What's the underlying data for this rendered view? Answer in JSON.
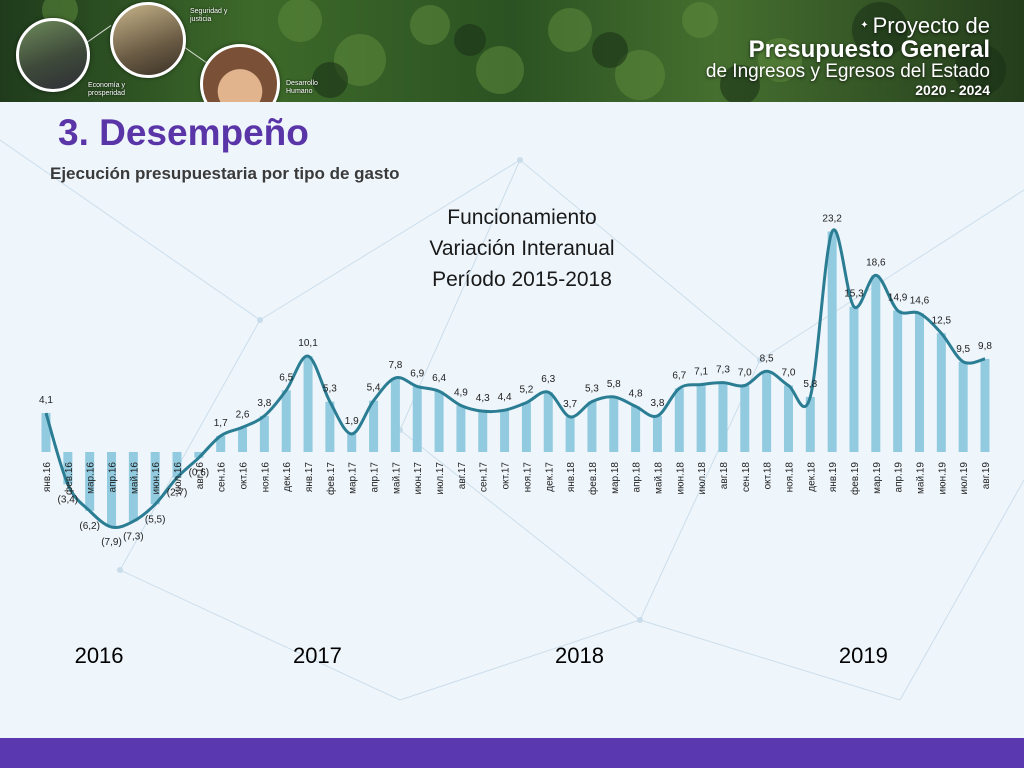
{
  "header": {
    "project_line1": "Proyecto de",
    "project_line2": "Presupuesto General",
    "project_line3": "de Ingresos y Egresos del Estado",
    "project_line4": "2020 - 2024",
    "icons": [
      {
        "name": "road-icon",
        "label": ""
      },
      {
        "name": "police-icon",
        "label": "Seguridad y justicia"
      },
      {
        "name": "child-icon",
        "label": "Desarrollo Humano"
      }
    ],
    "economy_label": "Economía y prosperidad"
  },
  "slide": {
    "title": "3. Desempeño",
    "subtitle": "Ejecución presupuestaria por tipo de gasto"
  },
  "chart_data": {
    "type": "bar",
    "title_lines": [
      "Funcionamiento",
      "Variación Interanual",
      "Período 2015-2018"
    ],
    "categories": [
      "янв.16",
      "фев.16",
      "мар.16",
      "апр.16",
      "май.16",
      "июн.16",
      "июл.16",
      "авг.16",
      "сен.16",
      "окт.16",
      "ноя.16",
      "дек.16",
      "янв.17",
      "фев.17",
      "мар.17",
      "апр.17",
      "май.17",
      "июн.17",
      "июл.17",
      "авг.17",
      "сен.17",
      "окт.17",
      "ноя.17",
      "дек.17",
      "янв.18",
      "фев.18",
      "мар.18",
      "апр.18",
      "май.18",
      "июн.18",
      "июл.18",
      "авг.18",
      "сен.18",
      "окт.18",
      "ноя.18",
      "дек.18",
      "янв.19",
      "фев.19",
      "мар.19",
      "апр.19",
      "май.19",
      "июн.19",
      "июл.19",
      "авг.19"
    ],
    "values": [
      4.1,
      -3.4,
      -6.2,
      -7.9,
      -7.3,
      -5.5,
      -2.7,
      -0.6,
      1.7,
      2.6,
      3.8,
      6.5,
      10.1,
      5.3,
      1.9,
      5.4,
      7.8,
      6.9,
      6.4,
      4.9,
      4.3,
      4.4,
      5.2,
      6.3,
      3.7,
      5.3,
      5.8,
      4.8,
      3.8,
      6.7,
      7.1,
      7.3,
      7.0,
      8.5,
      7.0,
      5.8,
      23.2,
      15.3,
      18.6,
      14.9,
      14.6,
      12.5,
      9.5,
      9.8
    ],
    "data_labels": [
      "4,1",
      "(3,4)",
      "(6,2)",
      "(7,9)",
      "(7,3)",
      "(5,5)",
      "(2,7)",
      "(0,6)",
      "1,7",
      "2,6",
      "3,8",
      "6,5",
      "10,1",
      "5,3",
      "1,9",
      "5,4",
      "7,8",
      "6,9",
      "6,4",
      "4,9",
      "4,3",
      "4,4",
      "5,2",
      "6,3",
      "3,7",
      "5,3",
      "5,8",
      "4,8",
      "3,8",
      "6,7",
      "7,1",
      "7,3",
      "7,0",
      "8,5",
      "7,0",
      "5,8",
      "23,2",
      "15,3",
      "18,6",
      "14,9",
      "14,6",
      "12,5",
      "9,5",
      "9,8"
    ],
    "series_style": {
      "bar_color": "#92cbe0",
      "line_color": "#2b7d93"
    },
    "overlay": "smoothed-line",
    "grid": false,
    "year_labels": [
      {
        "text": "2016",
        "index": 2.5
      },
      {
        "text": "2017",
        "index": 12.5
      },
      {
        "text": "2018",
        "index": 24.5
      },
      {
        "text": "2019",
        "index": 37.5
      }
    ]
  },
  "colors": {
    "accent": "#5a35a8",
    "footer": "#5a39b0"
  }
}
